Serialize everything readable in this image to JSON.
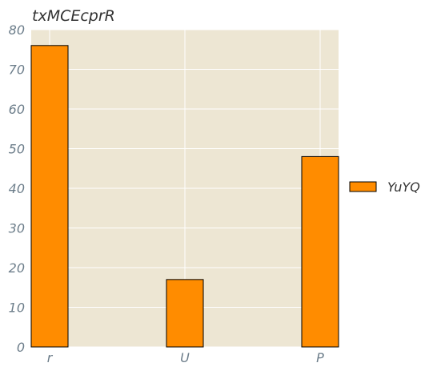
{
  "colors": {
    "plot_background": "#ede6d3",
    "grid": "#ffffff",
    "bar_fill": "#ff8c00",
    "bar_edge": "#000000",
    "tick_text": "#6c7d8a",
    "title_text": "#333333"
  },
  "chart_data": {
    "type": "bar",
    "title": "txMCEcprR",
    "xlabel": "",
    "ylabel": "",
    "categories": [
      "r",
      "U",
      "P"
    ],
    "series": [
      {
        "name": "YuYQ",
        "values": [
          76,
          17,
          48
        ]
      }
    ],
    "ylim": [
      0,
      80
    ],
    "yticks": [
      "0",
      "10",
      "20",
      "30",
      "40",
      "50",
      "60",
      "70",
      "80"
    ],
    "grid": true,
    "legend_position": "right"
  }
}
